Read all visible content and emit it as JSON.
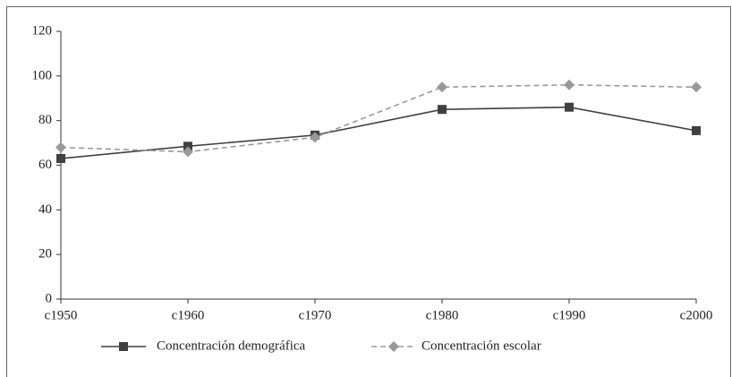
{
  "chart_data": {
    "type": "line",
    "categories": [
      "c1950",
      "c1960",
      "c1970",
      "c1980",
      "c1990",
      "c2000"
    ],
    "series": [
      {
        "name": "Concentración demográfica",
        "color": "#404040",
        "dash": false,
        "marker": "square",
        "values": [
          63,
          68.5,
          73.5,
          85,
          86,
          75.5
        ]
      },
      {
        "name": "Concentración escolar",
        "color": "#999999",
        "dash": true,
        "marker": "diamond",
        "values": [
          68,
          66,
          72.5,
          95,
          96,
          95
        ]
      }
    ],
    "ylim": [
      0,
      120
    ],
    "yticks": [
      0,
      20,
      40,
      60,
      80,
      100,
      120
    ],
    "grid": false,
    "legend": "bottom"
  }
}
